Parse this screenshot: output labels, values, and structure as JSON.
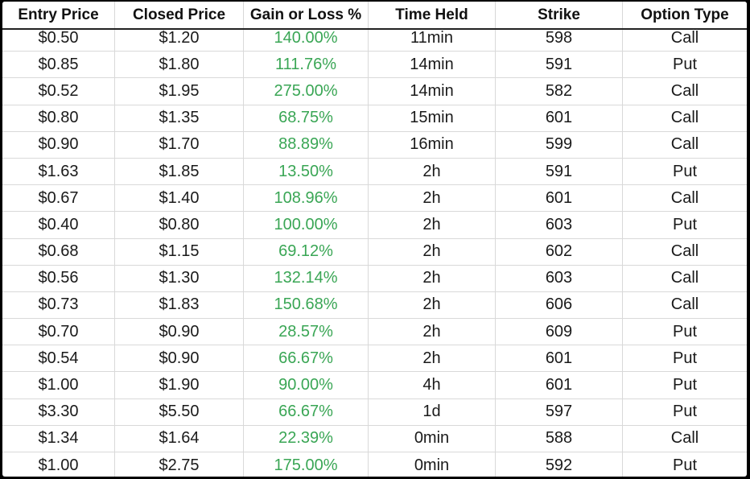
{
  "table": {
    "headers": [
      "Entry Price",
      "Closed Price",
      "Gain or Loss %",
      "Time Held",
      "Strike",
      "Option Type"
    ],
    "rows": [
      [
        "$0.50",
        "$1.20",
        "140.00%",
        "11min",
        "598",
        "Call"
      ],
      [
        "$0.85",
        "$1.80",
        "111.76%",
        "14min",
        "591",
        "Put"
      ],
      [
        "$0.52",
        "$1.95",
        "275.00%",
        "14min",
        "582",
        "Call"
      ],
      [
        "$0.80",
        "$1.35",
        "68.75%",
        "15min",
        "601",
        "Call"
      ],
      [
        "$0.90",
        "$1.70",
        "88.89%",
        "16min",
        "599",
        "Call"
      ],
      [
        "$1.63",
        "$1.85",
        "13.50%",
        "2h",
        "591",
        "Put"
      ],
      [
        "$0.67",
        "$1.40",
        "108.96%",
        "2h",
        "601",
        "Call"
      ],
      [
        "$0.40",
        "$0.80",
        "100.00%",
        "2h",
        "603",
        "Put"
      ],
      [
        "$0.68",
        "$1.15",
        "69.12%",
        "2h",
        "602",
        "Call"
      ],
      [
        "$0.56",
        "$1.30",
        "132.14%",
        "2h",
        "603",
        "Call"
      ],
      [
        "$0.73",
        "$1.83",
        "150.68%",
        "2h",
        "606",
        "Call"
      ],
      [
        "$0.70",
        "$0.90",
        "28.57%",
        "2h",
        "609",
        "Put"
      ],
      [
        "$0.54",
        "$0.90",
        "66.67%",
        "2h",
        "601",
        "Put"
      ],
      [
        "$1.00",
        "$1.90",
        "90.00%",
        "4h",
        "601",
        "Put"
      ],
      [
        "$3.30",
        "$5.50",
        "66.67%",
        "1d",
        "597",
        "Put"
      ],
      [
        "$1.34",
        "$1.64",
        "22.39%",
        "0min",
        "588",
        "Call"
      ],
      [
        "$1.00",
        "$2.75",
        "175.00%",
        "0min",
        "592",
        "Put"
      ]
    ]
  },
  "colors": {
    "gain_text": "#3aa655",
    "background": "#000000",
    "table_background": "#ffffff"
  }
}
